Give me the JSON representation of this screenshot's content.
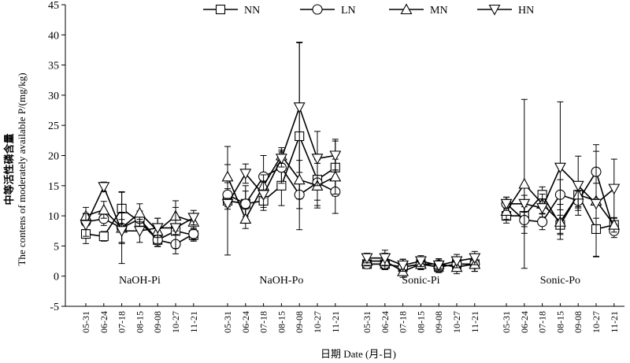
{
  "chart_data": {
    "type": "line",
    "ylabel_cn": "中等活性磷含量",
    "ylabel": "The contens of  moderately available P/(mg/kg)",
    "xlabel": "日期 Date (月-日)",
    "ylim": [
      -5,
      45
    ],
    "yticks": [
      -5,
      0,
      5,
      10,
      15,
      20,
      25,
      30,
      35,
      40,
      45
    ],
    "dates": [
      "05-31",
      "06-24",
      "07-18",
      "08-15",
      "09-08",
      "10-27",
      "11-21"
    ],
    "legend_position": "top-center",
    "groups": [
      {
        "name": "NaOH-Pi",
        "series": [
          {
            "name": "NN",
            "values": [
              7.0,
              6.6,
              11.2,
              9.0,
              6.0,
              7.5,
              6.8
            ],
            "err": [
              1.6,
              0.8,
              2.8,
              1.4,
              1.1,
              1.9,
              1.0
            ]
          },
          {
            "name": "LN",
            "values": [
              9.0,
              9.5,
              8.0,
              9.5,
              6.0,
              5.3,
              7.0
            ],
            "err": [
              1.3,
              1.1,
              5.9,
              1.3,
              1.0,
              1.6,
              1.0
            ]
          },
          {
            "name": "MN",
            "values": [
              10.0,
              11.0,
              8.0,
              10.5,
              7.5,
              10.0,
              9.0
            ],
            "err": [
              1.4,
              1.4,
              2.6,
              1.5,
              2.1,
              2.5,
              1.3
            ]
          },
          {
            "name": "HN",
            "values": [
              8.5,
              14.8,
              7.5,
              7.5,
              8.0,
              8.0,
              9.7
            ],
            "err": [
              1.9,
              0.8,
              1.9,
              1.9,
              1.6,
              3.4,
              1.2
            ]
          }
        ]
      },
      {
        "name": "NaOH-Po",
        "series": [
          {
            "name": "NN",
            "values": [
              12.5,
              12.0,
              12.5,
              15.0,
              23.2,
              16.0,
              18.0
            ],
            "err": [
              9.0,
              3.0,
              1.6,
              3.3,
              15.5,
              3.4,
              4.7
            ]
          },
          {
            "name": "LN",
            "values": [
              13.5,
              12.0,
              16.5,
              18.0,
              13.5,
              15.5,
              14.0
            ],
            "err": [
              2.0,
              2.1,
              3.5,
              2.6,
              2.3,
              3.8,
              3.6
            ]
          },
          {
            "name": "MN",
            "values": [
              16.5,
              9.5,
              15.0,
              20.0,
              16.0,
              15.0,
              16.5
            ],
            "err": [
              2.0,
              1.6,
              1.8,
              1.3,
              3.2,
              3.7,
              2.9
            ]
          },
          {
            "name": "HN",
            "values": [
              12.0,
              17.0,
              13.5,
              19.5,
              28.0,
              19.5,
              20.0
            ],
            "err": [
              0.9,
              1.6,
              2.1,
              1.4,
              10.8,
              4.5,
              2.4
            ]
          }
        ]
      },
      {
        "name": "Sonic-Pi",
        "series": [
          {
            "name": "NN",
            "values": [
              2.0,
              2.0,
              1.5,
              2.0,
              1.5,
              2.0,
              2.0
            ],
            "err": [
              0.7,
              0.9,
              1.3,
              0.9,
              0.9,
              1.1,
              1.2
            ]
          },
          {
            "name": "LN",
            "values": [
              2.0,
              2.0,
              1.5,
              2.0,
              1.5,
              2.0,
              2.0
            ],
            "err": [
              0.7,
              0.9,
              1.3,
              0.9,
              0.9,
              1.1,
              1.2
            ]
          },
          {
            "name": "MN",
            "values": [
              2.5,
              2.5,
              0.8,
              2.0,
              2.0,
              1.5,
              2.0
            ],
            "err": [
              0.8,
              1.3,
              1.0,
              0.9,
              0.9,
              1.1,
              1.2
            ]
          },
          {
            "name": "HN",
            "values": [
              3.0,
              3.0,
              1.8,
              2.5,
              1.8,
              2.5,
              3.0
            ],
            "err": [
              0.8,
              1.3,
              1.0,
              0.9,
              0.9,
              1.1,
              1.1
            ]
          }
        ]
      },
      {
        "name": "Sonic-Po",
        "series": [
          {
            "name": "NN",
            "values": [
              10.0,
              10.0,
              13.5,
              8.5,
              13.5,
              7.8,
              8.5
            ],
            "err": [
              1.2,
              1.8,
              1.3,
              1.6,
              2.0,
              4.6,
              1.2
            ]
          },
          {
            "name": "LN",
            "values": [
              12.0,
              9.3,
              9.0,
              13.5,
              12.5,
              17.3,
              7.5
            ],
            "err": [
              1.1,
              2.2,
              1.3,
              2.5,
              1.6,
              4.5,
              1.1
            ]
          },
          {
            "name": "MN",
            "values": [
              10.8,
              15.3,
              12.0,
              9.0,
              13.5,
              12.5,
              8.5
            ],
            "err": [
              1.4,
              14.0,
              1.6,
              2.9,
              2.2,
              2.9,
              1.2
            ]
          },
          {
            "name": "HN",
            "values": [
              12.0,
              12.0,
              11.3,
              18.0,
              15.0,
              12.0,
              14.5
            ],
            "err": [
              1.1,
              1.4,
              1.5,
              10.9,
              4.9,
              8.7,
              4.9
            ]
          }
        ]
      }
    ]
  }
}
